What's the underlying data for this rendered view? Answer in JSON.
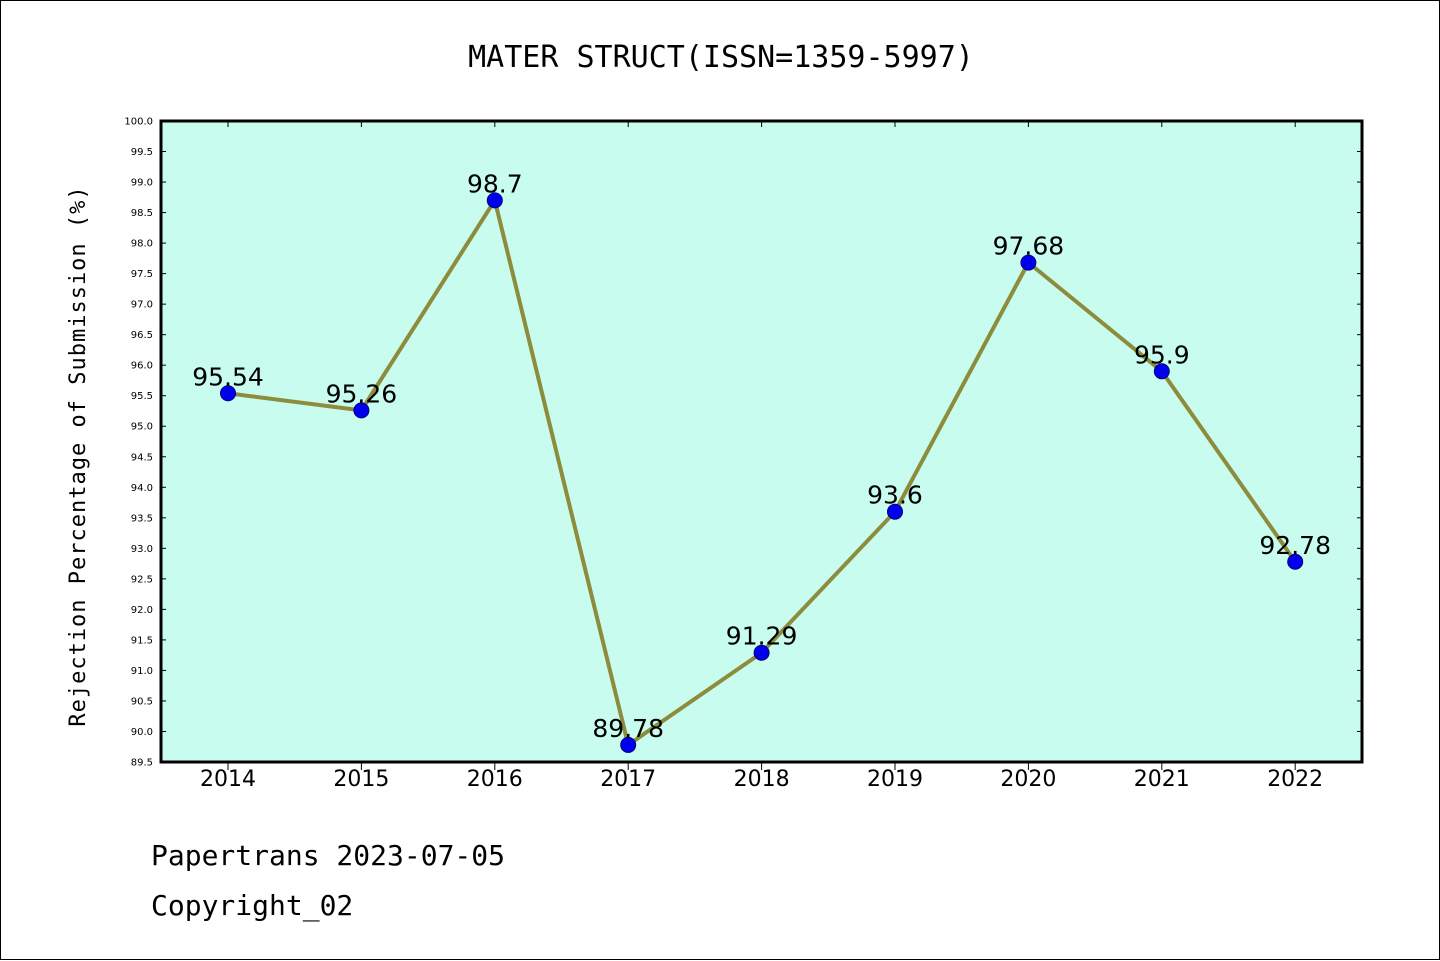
{
  "colors": {
    "plot_background": "#c8fcee",
    "line": "#8c8c3c",
    "marker_fill": "#0000ee",
    "marker_edge": "#000080",
    "axis": "#000000"
  },
  "chart_data": {
    "type": "line",
    "title": "MATER STRUCT(ISSN=1359-5997)",
    "xlabel": "",
    "ylabel": "Rejection Percentage of Submission (%)",
    "categories": [
      "2014",
      "2015",
      "2016",
      "2017",
      "2018",
      "2019",
      "2020",
      "2021",
      "2022"
    ],
    "values": [
      95.54,
      95.26,
      98.7,
      89.78,
      91.29,
      93.6,
      97.68,
      95.9,
      92.78
    ],
    "data_labels": [
      "95.54",
      "95.26",
      "98.7",
      "89.78",
      "91.29",
      "93.6",
      "97.68",
      "95.9",
      "92.78"
    ],
    "ylim": [
      89.5,
      100.0
    ],
    "ytick_step": 0.5,
    "grid": false,
    "legend": "none"
  },
  "footer": {
    "line1": "Papertrans 2023-07-05",
    "line2": "Copyright_02"
  }
}
